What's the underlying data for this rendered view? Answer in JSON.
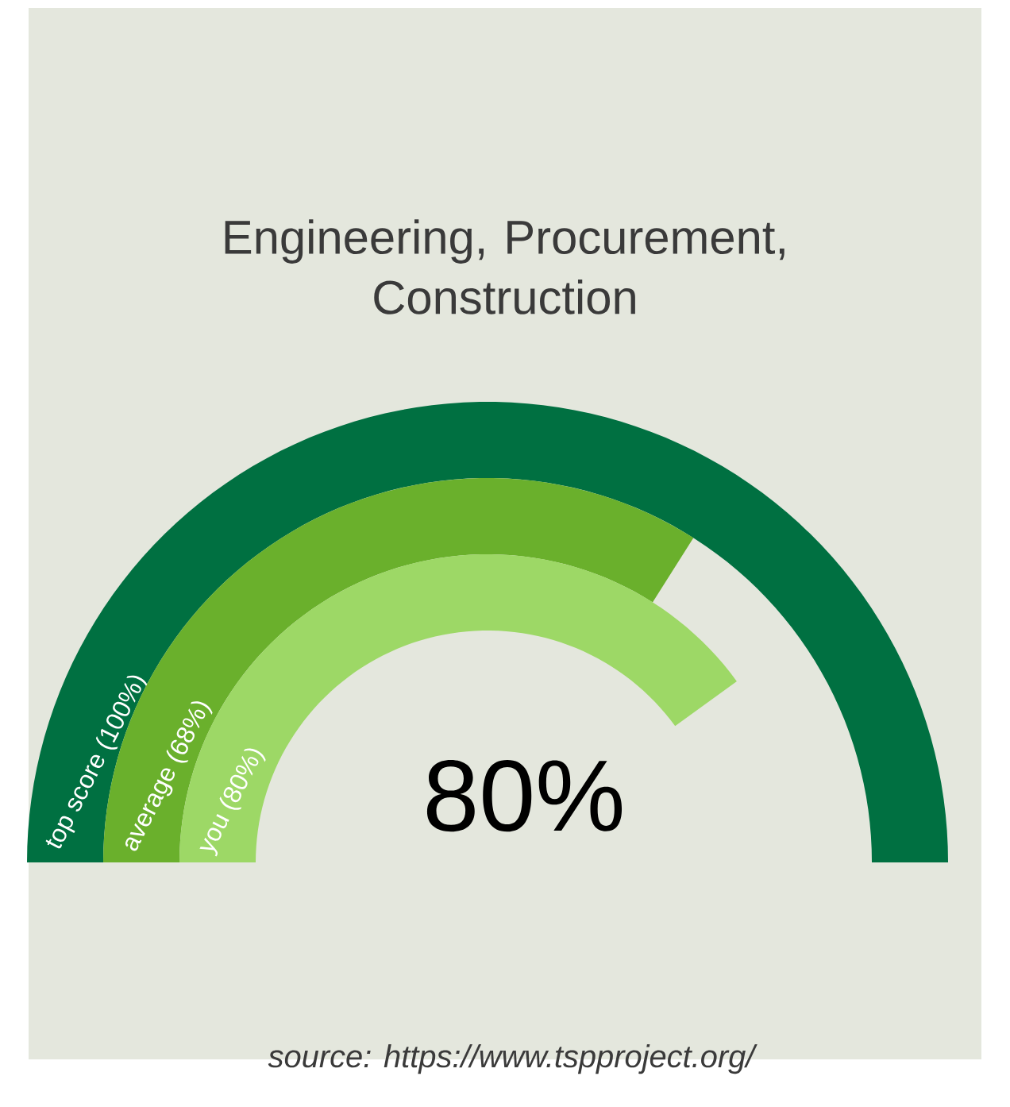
{
  "chart_data": {
    "type": "other",
    "title": "Engineering, Procurement, Construction",
    "categories": [
      "top score",
      "average",
      "you"
    ],
    "values": [
      100,
      68,
      80
    ],
    "value_labels": [
      "(100%)",
      "(68%)",
      "(80%)"
    ],
    "colors": [
      "#007041",
      "#6ab02c",
      "#9dd866"
    ],
    "annotations": [
      "80%",
      "source: https://www.tspproject.org/"
    ]
  }
}
